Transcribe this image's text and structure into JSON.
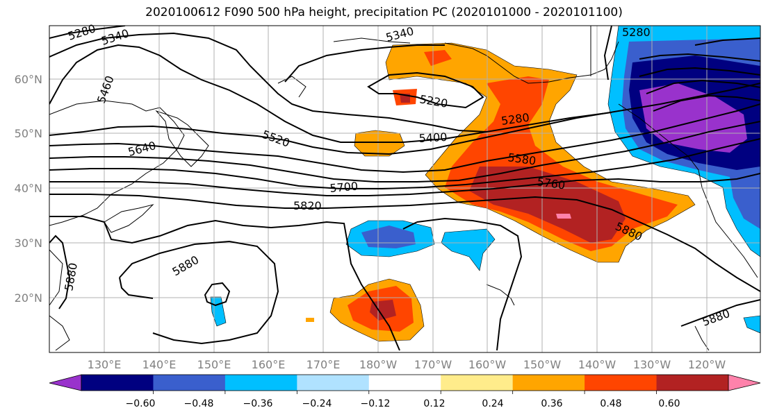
{
  "title": "2020100612 F090 500 hPa height, precipitation PC (2020101000 - 2020101100)",
  "lat_labels": [
    "60°N",
    "50°N",
    "40°N",
    "30°N",
    "20°N"
  ],
  "lon_labels": [
    "130°E",
    "140°E",
    "150°E",
    "160°E",
    "170°E",
    "180°W",
    "170°W",
    "160°W",
    "150°W",
    "140°W",
    "130°W",
    "120°W"
  ],
  "contour_labels": {
    "c5280a": "5280",
    "c5340a": "5340",
    "c5340b": "5340",
    "c5280b": "5280",
    "c5460": "5460",
    "c5220": "5220",
    "c5280c": "5280",
    "c5400": "5400",
    "c5520": "5520",
    "c5640": "5640",
    "c5580": "5580",
    "c5760": "5760",
    "c5700": "5700",
    "c5820": "5820",
    "c5880a": "5880",
    "c5880b": "5880",
    "c5880c": "5880",
    "c5880d": "5880"
  },
  "colorbar": {
    "colors": [
      "#9932cc",
      "#000080",
      "#3a5fcd",
      "#00bfff",
      "#b0e2ff",
      "#ffffff",
      "#ffec8b",
      "#ffa500",
      "#ff4500",
      "#b22222",
      "#ff82ab"
    ],
    "tick_labels": [
      "−0.60",
      "−0.48",
      "−0.36",
      "−0.24",
      "−0.12",
      "0.12",
      "0.24",
      "0.36",
      "0.48",
      "0.60"
    ]
  }
}
